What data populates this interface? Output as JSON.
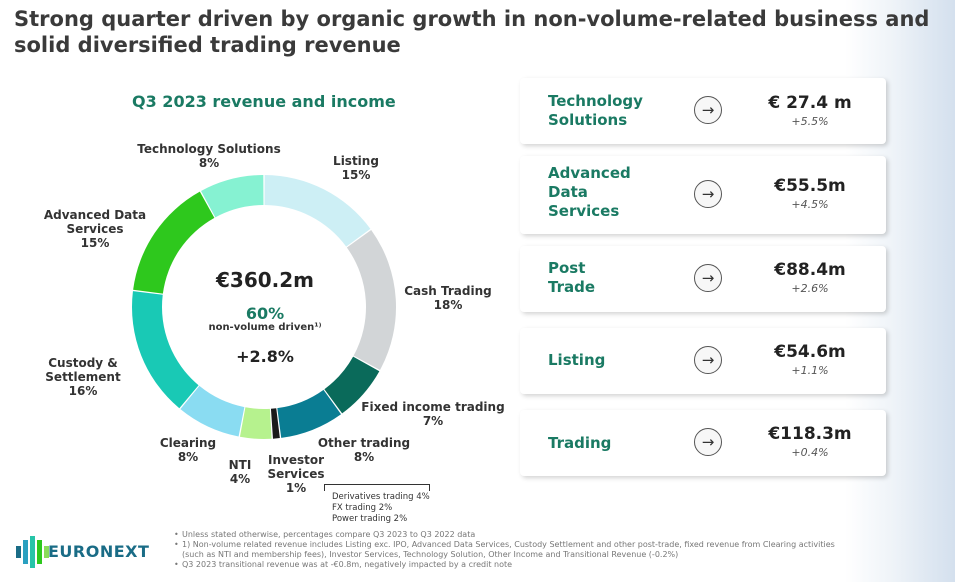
{
  "title": "Strong quarter driven by organic growth in non-volume-related business and solid diversified trading revenue",
  "chart_data": {
    "type": "pie",
    "title": "Q3 2023 revenue and income",
    "center": {
      "total": "€360.2m",
      "non_volume_pct": "60%",
      "non_volume_label": "non-volume driven¹⁾",
      "growth": "+2.8%"
    },
    "slices": [
      {
        "label": "Listing",
        "pct_label": "15%",
        "value": 15,
        "color": "#cdeff5"
      },
      {
        "label": "Cash Trading",
        "pct_label": "18%",
        "value": 18,
        "color": "#d2d5d7"
      },
      {
        "label": "Fixed income trading",
        "pct_label": "7%",
        "value": 7,
        "color": "#0a6a5a"
      },
      {
        "label": "Other trading",
        "pct_label": "8%",
        "value": 8,
        "color": "#0a7d93"
      },
      {
        "label": "Investor Services",
        "pct_label": "1%",
        "value": 1,
        "color": "#1a1a1a"
      },
      {
        "label": "NTI",
        "pct_label": "4%",
        "value": 4,
        "color": "#b6f28e"
      },
      {
        "label": "Clearing",
        "pct_label": "8%",
        "value": 8,
        "color": "#8adcf2"
      },
      {
        "label": "Custody & Settlement",
        "pct_label": "16%",
        "value": 16,
        "color": "#19c9b5"
      },
      {
        "label": "Advanced Data Services",
        "pct_label": "15%",
        "value": 15,
        "color": "#2ec81d"
      },
      {
        "label": "Technology Solutions",
        "pct_label": "8%",
        "value": 8,
        "color": "#86f2d2"
      }
    ],
    "other_trading_breakdown": [
      "Derivatives trading 4%",
      "FX trading 2%",
      "Power trading 2%"
    ]
  },
  "cards": [
    {
      "name_lines": [
        "Technology",
        "Solutions"
      ],
      "value": "€ 27.4 m",
      "change": "+5.5%"
    },
    {
      "name_lines": [
        "Advanced",
        "Data",
        "Services"
      ],
      "value": "€55.5m",
      "change": "+4.5%"
    },
    {
      "name_lines": [
        "Post",
        "Trade"
      ],
      "value": "€88.4m",
      "change": "+2.6%"
    },
    {
      "name_lines": [
        "Listing"
      ],
      "value": "€54.6m",
      "change": "+1.1%"
    },
    {
      "name_lines": [
        "Trading"
      ],
      "value": "€118.3m",
      "change": "+0.4%"
    }
  ],
  "footnotes": [
    "Unless stated otherwise, percentages compare Q3 2023 to Q3 2022 data",
    "1) Non-volume related revenue includes Listing exc. IPO, Advanced Data Services, Custody Settlement and other post-trade, fixed revenue from Clearing activities (such as NTI and membership fees), Investor Services, Technology Solution, Other Income and Transitional Revenue (-0.2%)",
    "Q3 2023 transitional revenue was at -€0.8m, negatively impacted by a credit note"
  ],
  "logo_text": "EURONEXT",
  "colors": {
    "accent": "#1a7a63",
    "logo": "#1a6c86"
  }
}
